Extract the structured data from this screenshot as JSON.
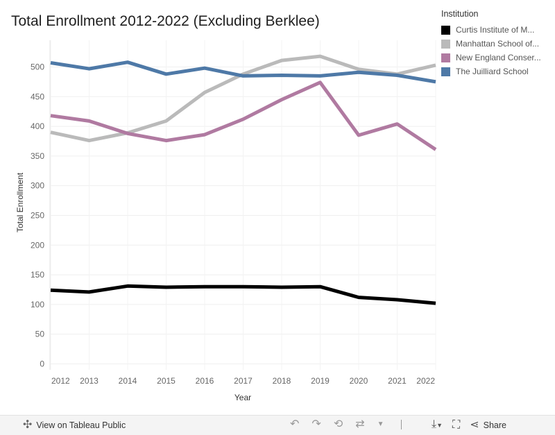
{
  "chart_data": {
    "type": "line",
    "title": "Total Enrollment 2012-2022 (Excluding Berklee)",
    "xlabel": "Year",
    "ylabel": "Total Enrollment",
    "x": [
      2012,
      2013,
      2014,
      2015,
      2016,
      2017,
      2018,
      2019,
      2020,
      2021,
      2022
    ],
    "x_tick_labels": [
      "2012",
      "2013",
      "2014",
      "2015",
      "2016",
      "2017",
      "2018",
      "2019",
      "2020",
      "2021",
      "2022"
    ],
    "ylim": [
      -10,
      545
    ],
    "y_ticks": [
      0,
      50,
      100,
      150,
      200,
      250,
      300,
      350,
      400,
      450,
      500
    ],
    "y_tick_labels": [
      "0",
      "50",
      "100",
      "150",
      "200",
      "250",
      "300",
      "350",
      "400",
      "450",
      "500"
    ],
    "grid": true,
    "legend_title": "Institution",
    "legend_position": "top-right",
    "series": [
      {
        "name": "Curtis Institute of M...",
        "color": "#000000",
        "values": [
          124,
          121,
          131,
          129,
          130,
          130,
          129,
          130,
          112,
          108,
          102
        ]
      },
      {
        "name": "Manhattan School of...",
        "color": "#bababa",
        "values": [
          390,
          376,
          389,
          409,
          457,
          488,
          511,
          518,
          496,
          488,
          503
        ]
      },
      {
        "name": "New England Conser...",
        "color": "#b07aa1",
        "values": [
          418,
          409,
          388,
          376,
          386,
          412,
          445,
          474,
          385,
          404,
          361
        ]
      },
      {
        "name": "The Juilliard School",
        "color": "#4e79a7",
        "values": [
          507,
          497,
          508,
          488,
          498,
          485,
          486,
          485,
          491,
          486,
          475
        ]
      }
    ]
  },
  "footer": {
    "view_label": "View on Tableau Public",
    "share_label": "Share"
  }
}
